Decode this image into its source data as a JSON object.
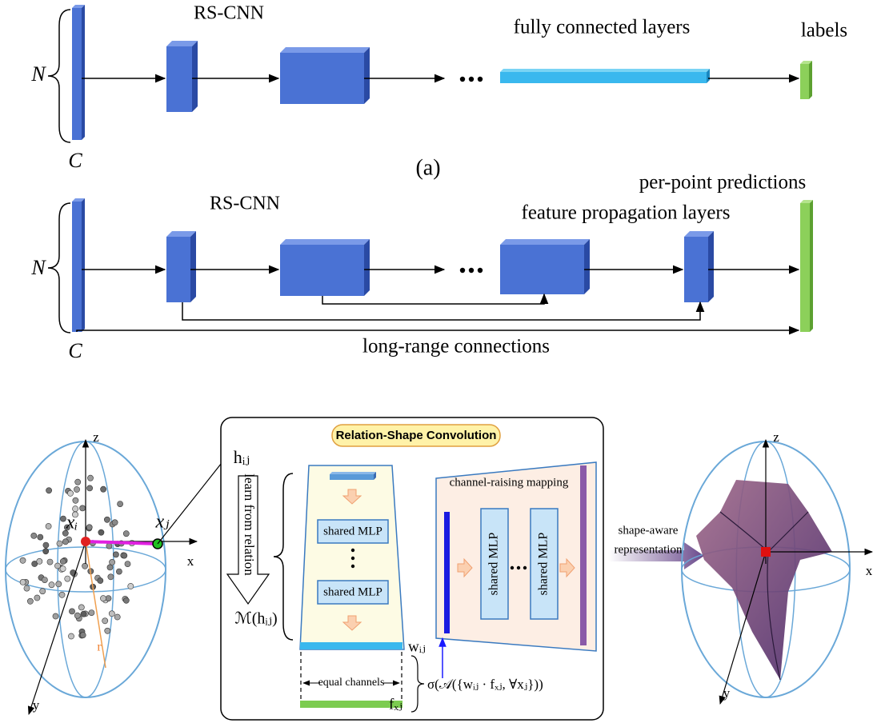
{
  "panel_a": {
    "encoder_label": "RS-CNN",
    "head_label": "fully connected layers",
    "output_label": "labels",
    "n_label": "N",
    "c_label": "C",
    "caption": "(a)"
  },
  "panel_b": {
    "encoder_label": "RS-CNN",
    "output_label": "per-point predictions",
    "decoder_label": "feature propagation layers",
    "n_label": "N",
    "c_label": "C",
    "skip_label": "long-range connections"
  },
  "bottom": {
    "left_sphere": {
      "axes": [
        "z",
        "x",
        "y"
      ],
      "center": "xᵢ",
      "neighbor": "xⱼ",
      "radius": "r"
    },
    "conv": {
      "title": "Relation-Shape Convolution",
      "input": "hᵢⱼ",
      "relation_arrow": "learn from relation",
      "mapping": "ℳ(hᵢⱼ)",
      "mlp_top": "shared MLP",
      "mlp_bottom": "shared MLP",
      "weight": "wᵢⱼ",
      "feature": "fₓⱼ",
      "equal": "equal channels",
      "raising": "channel-raising mapping",
      "mlp_left": "shared MLP",
      "mlp_right": "shared MLP",
      "aggregation": "σ(𝒜({wᵢⱼ · fₓⱼ, ∀xⱼ}))"
    },
    "arrow_label": [
      "shape-aware",
      "representation"
    ],
    "right_sphere": {
      "axes": [
        "z",
        "x",
        "y"
      ]
    }
  }
}
